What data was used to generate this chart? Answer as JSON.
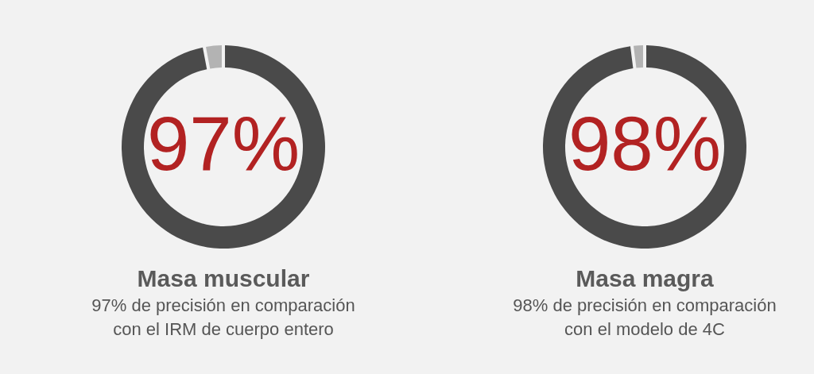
{
  "chart_data": [
    {
      "type": "donut",
      "title": "Masa muscular",
      "subtitle": "97% de precisión en comparación\ncon el IRM de cuerpo entero",
      "categories": [
        null,
        null
      ],
      "values": [
        97,
        3
      ],
      "colors": [
        "#4a4a4a",
        "#b3b3b3"
      ],
      "value_labels": [
        "97%",
        null
      ]
    },
    {
      "type": "donut",
      "title": "Masa magra",
      "subtitle": "98% de precisión en comparación\ncon el modelo de 4C",
      "categories": [
        null,
        null
      ],
      "values": [
        98,
        2
      ],
      "colors": [
        "#4a4a4a",
        "#b3b3b3"
      ],
      "value_labels": [
        "98%",
        null
      ]
    }
  ]
}
